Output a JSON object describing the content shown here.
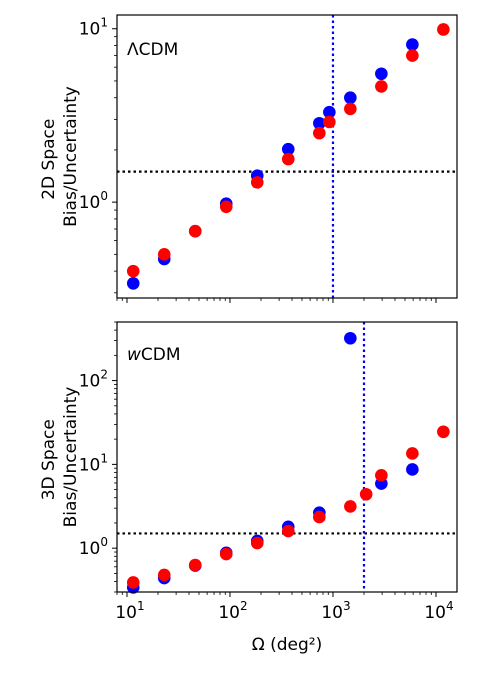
{
  "figure": {
    "xlabel": "Ω (deg²)"
  },
  "chart_data": [
    {
      "type": "scatter",
      "annotation": "ΛCDM",
      "ylabel_line1": "2D Space",
      "ylabel_line2": "Bias/Uncertainty",
      "xscale": "log",
      "yscale": "log",
      "xlim": [
        8,
        16000
      ],
      "ylim": [
        0.28,
        12
      ],
      "xticks": [
        10,
        100,
        1000,
        10000
      ],
      "yticks": [
        {
          "value": 1,
          "base": "10",
          "exp": "0"
        },
        {
          "value": 10,
          "base": "10",
          "exp": "1"
        }
      ],
      "hline": {
        "y": 1.5,
        "color": "#000000",
        "style": "dotted"
      },
      "vline": {
        "x": 1000,
        "color": "#0000ff",
        "style": "dotted"
      },
      "grid": false,
      "series": [
        {
          "color": "#0000ff",
          "points": [
            [
              11.5,
              0.34
            ],
            [
              23,
              0.47
            ],
            [
              46,
              0.68
            ],
            [
              92,
              0.98
            ],
            [
              184,
              1.42
            ],
            [
              368,
              2.02
            ],
            [
              737,
              2.85
            ],
            [
              922,
              3.3
            ],
            [
              1474,
              4.0
            ],
            [
              2949,
              5.5
            ],
            [
              5898,
              8.1
            ]
          ]
        },
        {
          "color": "#ff0000",
          "points": [
            [
              11.5,
              0.4
            ],
            [
              23,
              0.5
            ],
            [
              46,
              0.68
            ],
            [
              92,
              0.94
            ],
            [
              184,
              1.3
            ],
            [
              368,
              1.77
            ],
            [
              737,
              2.5
            ],
            [
              922,
              2.9
            ],
            [
              1474,
              3.45
            ],
            [
              2949,
              4.65
            ],
            [
              5898,
              7.0
            ],
            [
              11796,
              9.9
            ]
          ]
        }
      ]
    },
    {
      "type": "scatter",
      "annotation_italic": "w",
      "annotation_rest": "CDM",
      "ylabel_line1": "3D Space",
      "ylabel_line2": "Bias/Uncertainty",
      "xscale": "log",
      "yscale": "log",
      "xlim": [
        8,
        16000
      ],
      "ylim": [
        0.3,
        500
      ],
      "xticks": [
        {
          "value": 10,
          "base": "10",
          "exp": "1"
        },
        {
          "value": 100,
          "base": "10",
          "exp": "2"
        },
        {
          "value": 1000,
          "base": "10",
          "exp": "3"
        },
        {
          "value": 10000,
          "base": "10",
          "exp": "4"
        }
      ],
      "yticks": [
        {
          "value": 1,
          "base": "10",
          "exp": "0"
        },
        {
          "value": 10,
          "base": "10",
          "exp": "1"
        },
        {
          "value": 100,
          "base": "10",
          "exp": "2"
        }
      ],
      "hline": {
        "y": 1.5,
        "color": "#000000",
        "style": "dotted"
      },
      "vline": {
        "x": 2000,
        "color": "#0000ff",
        "style": "dotted"
      },
      "grid": false,
      "series": [
        {
          "color": "#0000ff",
          "points": [
            [
              11.5,
              0.34
            ],
            [
              23,
              0.44
            ],
            [
              46,
              0.62
            ],
            [
              92,
              0.88
            ],
            [
              184,
              1.22
            ],
            [
              368,
              1.8
            ],
            [
              737,
              2.65
            ],
            [
              1474,
              320
            ],
            [
              2949,
              5.9
            ],
            [
              5898,
              8.7
            ]
          ]
        },
        {
          "color": "#ff0000",
          "points": [
            [
              11.5,
              0.39
            ],
            [
              23,
              0.48
            ],
            [
              46,
              0.63
            ],
            [
              92,
              0.85
            ],
            [
              184,
              1.15
            ],
            [
              368,
              1.6
            ],
            [
              737,
              2.35
            ],
            [
              1474,
              3.15
            ],
            [
              2100,
              4.4
            ],
            [
              2949,
              7.4
            ],
            [
              5898,
              13.5
            ],
            [
              11796,
              24.5
            ]
          ]
        }
      ]
    }
  ]
}
